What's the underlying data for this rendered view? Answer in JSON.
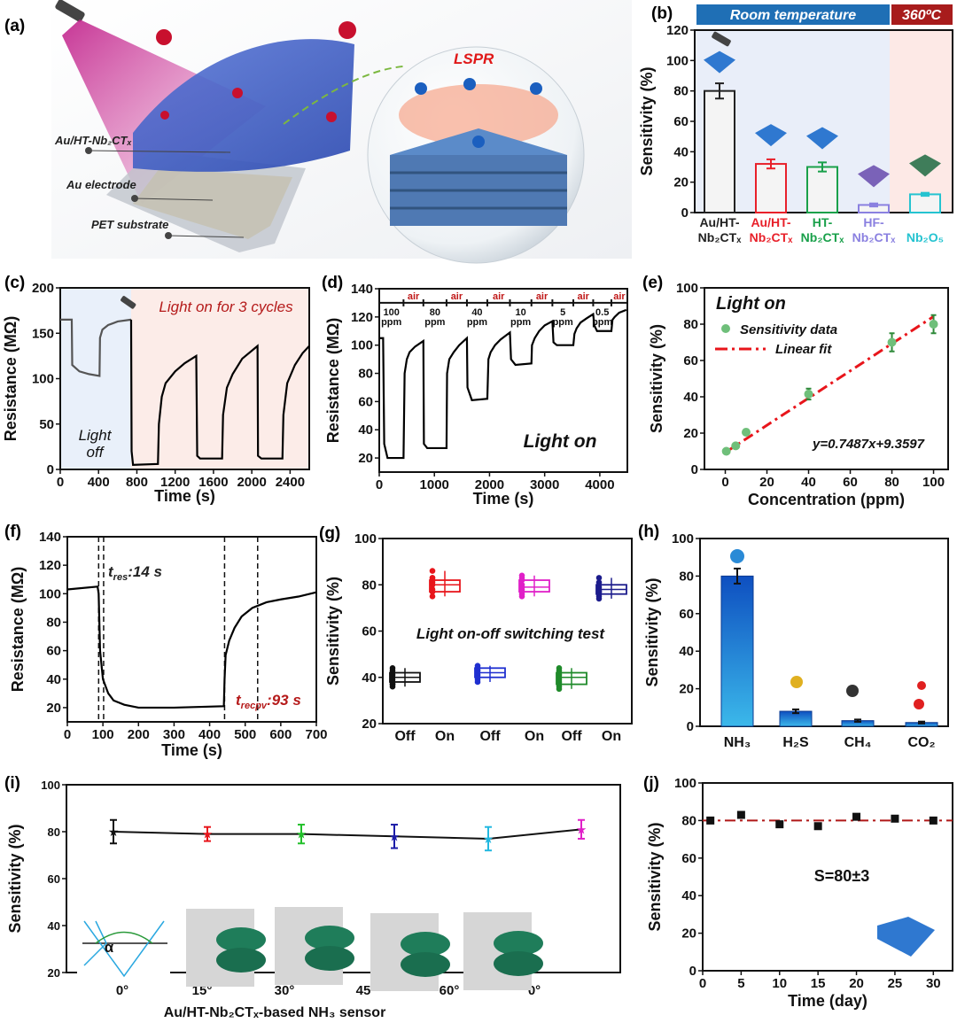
{
  "panel_letters": [
    "(a)",
    "(b)",
    "(c)",
    "(d)",
    "(e)",
    "(f)",
    "(g)",
    "(h)",
    "(i)",
    "(j)"
  ],
  "illustration": {
    "labels": [
      "Au/HT-Nb₂CTₓ",
      "Au electrode",
      "PET substrate"
    ],
    "lspr": "LSPR"
  },
  "chart_data": [
    {
      "panel": "b",
      "type": "bar",
      "ylabel": "Sensitivity (%)",
      "ylim": [
        0,
        120
      ],
      "yticks": [
        0,
        20,
        40,
        60,
        80,
        100,
        120
      ],
      "header": [
        "Room temperature",
        "360ºC"
      ],
      "header_colors": [
        "#1f6fb5",
        "#a81c1c"
      ],
      "categories": [
        "Au/HT-Nb₂CTₓ",
        "Au/HT-Nb₂CTₓ",
        "HT-Nb₂CTₓ",
        "HF-Nb₂CTₓ",
        "Nb₂O₅"
      ],
      "category_lines": [
        [
          "Au/HT-",
          "Nb₂CTₓ"
        ],
        [
          "Au/HT-",
          "Nb₂CTₓ"
        ],
        [
          "HT-",
          "Nb₂CTₓ"
        ],
        [
          "HF-",
          "Nb₂CTₓ"
        ],
        [
          "",
          "Nb₂O₅"
        ]
      ],
      "values": [
        80,
        32,
        30,
        5,
        12
      ],
      "errors": [
        5,
        3,
        3,
        1,
        1
      ],
      "colors": [
        "#222222",
        "#e8202a",
        "#19a04a",
        "#8a80e0",
        "#25c3d0"
      ]
    },
    {
      "panel": "c",
      "type": "line",
      "xlabel": "Time (s)",
      "ylabel": "Resistance (MΩ)",
      "xlim": [
        0,
        2600
      ],
      "ylim": [
        0,
        200
      ],
      "xticks": [
        0,
        400,
        800,
        1200,
        1600,
        2000,
        2400
      ],
      "yticks": [
        0,
        50,
        100,
        150,
        200
      ],
      "annotations": [
        "Light on for 3 cycles",
        "Light",
        "off"
      ],
      "regions": [
        {
          "from": 0,
          "to": 740,
          "color": "#e9f0fa"
        },
        {
          "from": 740,
          "to": 2600,
          "color": "#fcece8"
        }
      ],
      "series": [
        {
          "color": "#555555",
          "x": [
            0,
            120,
            125,
            200,
            300,
            410,
            415,
            440,
            500,
            600,
            740
          ],
          "y": [
            165,
            165,
            115,
            108,
            105,
            103,
            145,
            154,
            159,
            163,
            165
          ]
        },
        {
          "color": "#000000",
          "x": [
            740,
            745,
            760,
            1020,
            1030,
            1060,
            1100,
            1200,
            1300,
            1420,
            1430,
            1460,
            1690,
            1700,
            1740,
            1800,
            1900,
            2060,
            2065,
            2100,
            2320,
            2330,
            2370,
            2450,
            2530,
            2600
          ],
          "y": [
            165,
            20,
            5,
            6,
            50,
            80,
            95,
            108,
            117,
            125,
            15,
            12,
            12,
            60,
            90,
            105,
            122,
            136,
            15,
            12,
            12,
            60,
            95,
            115,
            128,
            136
          ]
        }
      ]
    },
    {
      "panel": "d",
      "type": "line",
      "xlabel": "Time (s)",
      "ylabel": "Resistance (MΩ)",
      "xlim": [
        0,
        4500
      ],
      "ylim": [
        10,
        140
      ],
      "xticks": [
        0,
        1000,
        2000,
        3000,
        4000
      ],
      "yticks": [
        20,
        40,
        60,
        80,
        100,
        120,
        140
      ],
      "air_label": "air",
      "air_count": 6,
      "concentration_labels": [
        "100",
        "80",
        "40",
        "10",
        "5",
        "0.5"
      ],
      "ppm_label": "ppm",
      "annotation": "Light on",
      "series": [
        {
          "color": "#000000",
          "x": [
            0,
            70,
            90,
            150,
            440,
            460,
            500,
            550,
            650,
            800,
            810,
            870,
            1220,
            1230,
            1270,
            1350,
            1450,
            1590,
            1600,
            1680,
            1960,
            1980,
            2020,
            2100,
            2200,
            2370,
            2390,
            2470,
            2760,
            2770,
            2820,
            2900,
            3000,
            3140,
            3160,
            3220,
            3520,
            3540,
            3580,
            3650,
            3760,
            3880,
            3900,
            3950,
            4210,
            4230,
            4270,
            4350,
            4480
          ],
          "y": [
            105,
            105,
            30,
            20,
            20,
            80,
            90,
            95,
            99,
            103,
            30,
            27,
            27,
            80,
            90,
            95,
            100,
            105,
            70,
            61,
            62,
            90,
            95,
            100,
            104,
            109,
            90,
            86,
            87,
            100,
            105,
            110,
            114,
            117,
            102,
            100,
            100,
            108,
            112,
            116,
            119,
            122,
            114,
            110,
            110,
            118,
            120,
            123,
            125
          ]
        }
      ]
    },
    {
      "panel": "e",
      "type": "scatter",
      "xlabel": "Concentration (ppm)",
      "ylabel": "Sensitivity (%)",
      "xlim": [
        -10,
        107
      ],
      "ylim": [
        0,
        100
      ],
      "xticks": [
        0,
        20,
        40,
        60,
        80,
        100
      ],
      "yticks": [
        0,
        20,
        40,
        60,
        80,
        100
      ],
      "title": "Light on",
      "legend": [
        "Sensitivity data",
        "Linear fit"
      ],
      "equation": "y=0.7487x+9.3597",
      "fit": {
        "slope": 0.7487,
        "intercept": 9.3597,
        "color": "#e8151b"
      },
      "point_color": "#6fbf7a",
      "x": [
        0.5,
        5,
        10,
        40,
        80,
        100
      ],
      "y": [
        10,
        13,
        20.5,
        41.5,
        70,
        80
      ],
      "errors": [
        1,
        1,
        1.5,
        3,
        5,
        5
      ]
    },
    {
      "panel": "f",
      "type": "line",
      "xlabel": "Time (s)",
      "ylabel": "Resistance (MΩ)",
      "xlim": [
        0,
        700
      ],
      "ylim": [
        10,
        140
      ],
      "xticks": [
        0,
        100,
        200,
        300,
        400,
        500,
        600,
        700
      ],
      "yticks": [
        20,
        40,
        60,
        80,
        100,
        120,
        140
      ],
      "markers": [
        88,
        102,
        442,
        535
      ],
      "t_res": {
        "t": "t",
        "sub": "res",
        "rest": ":14 s"
      },
      "t_rec": {
        "t": "t",
        "sub": "recpv",
        "rest": ":93 s"
      },
      "series": [
        {
          "color": "#000000",
          "x": [
            0,
            85,
            88,
            92,
            100,
            115,
            130,
            160,
            200,
            300,
            440,
            442,
            445,
            455,
            470,
            490,
            520,
            560,
            600,
            650,
            700
          ],
          "y": [
            103,
            105,
            100,
            60,
            40,
            30,
            25,
            22,
            20,
            20,
            21,
            40,
            57,
            67,
            76,
            84,
            90,
            94,
            96,
            98,
            101
          ]
        }
      ]
    },
    {
      "panel": "g",
      "type": "box",
      "ylabel": "Sensitivity (%)",
      "ylim": [
        20,
        100
      ],
      "yticks": [
        20,
        40,
        60,
        80,
        100
      ],
      "categories": [
        "Off",
        "On",
        "Off",
        "On",
        "Off",
        "On"
      ],
      "annotation": "Light on-off switching test",
      "colors": [
        "#111111",
        "#e8151b",
        "#1f2fd0",
        "#e020c8",
        "#1f8a2a",
        "#1c1c8c"
      ],
      "boxes": [
        {
          "q1": 38,
          "median": 40,
          "q3": 42,
          "min": 36,
          "max": 44,
          "points": [
            36,
            37,
            37,
            38,
            39,
            40,
            41,
            42,
            43,
            44
          ]
        },
        {
          "q1": 77,
          "median": 80,
          "q3": 82,
          "min": 75,
          "max": 86,
          "points": [
            75,
            77,
            77,
            78,
            80,
            81,
            82,
            83,
            83,
            86
          ]
        },
        {
          "q1": 40,
          "median": 42,
          "q3": 44,
          "min": 38,
          "max": 45,
          "points": [
            38,
            39,
            40,
            41,
            42,
            43,
            43,
            44,
            44,
            45
          ]
        },
        {
          "q1": 77,
          "median": 79,
          "q3": 82,
          "min": 75,
          "max": 84,
          "points": [
            75,
            76,
            77,
            78,
            79,
            79,
            80,
            82,
            83,
            84
          ]
        },
        {
          "q1": 37,
          "median": 40,
          "q3": 42,
          "min": 35,
          "max": 44,
          "points": [
            35,
            36,
            37,
            38,
            39,
            40,
            41,
            42,
            43,
            44
          ]
        },
        {
          "q1": 76,
          "median": 78,
          "q3": 80,
          "min": 74,
          "max": 83,
          "points": [
            74,
            75,
            76,
            77,
            77,
            78,
            78,
            79,
            81,
            83
          ]
        }
      ]
    },
    {
      "panel": "h",
      "type": "bar",
      "ylabel": "Sensitivity (%)",
      "ylim": [
        0,
        100
      ],
      "yticks": [
        0,
        20,
        40,
        60,
        80,
        100
      ],
      "categories": [
        "NH₃",
        "H₂S",
        "CH₄",
        "CO₂"
      ],
      "values": [
        80,
        8,
        3,
        2
      ],
      "errors": [
        4,
        1,
        0.6,
        0.5
      ],
      "bar_color": "#1565c8"
    },
    {
      "panel": "i",
      "type": "line",
      "xlabel": "Au/HT-Nb₂CTₓ-based NH₃ sensor",
      "ylabel": "Sensitivity (%)",
      "ylim": [
        20,
        100
      ],
      "yticks": [
        20,
        40,
        60,
        80,
        100
      ],
      "categories": [
        "0°",
        "15°",
        "30°",
        "45°",
        "60°",
        "0°"
      ],
      "values": [
        80,
        79,
        79,
        78,
        77,
        81
      ],
      "errors": [
        5,
        3,
        4,
        5,
        5,
        4
      ],
      "colors": [
        "#111111",
        "#e8151b",
        "#22c02a",
        "#1c1ca8",
        "#22b8e0",
        "#e020c8"
      ],
      "inset_label": "α"
    },
    {
      "panel": "j",
      "type": "scatter",
      "xlabel": "Time (day)",
      "ylabel": "Sensitivity (%)",
      "xlim": [
        0,
        32.5
      ],
      "ylim": [
        0,
        100
      ],
      "xticks": [
        0,
        5,
        10,
        15,
        20,
        25,
        30
      ],
      "yticks": [
        0,
        20,
        40,
        60,
        80,
        100
      ],
      "x": [
        1,
        5,
        10,
        15,
        20,
        25,
        30
      ],
      "y": [
        80,
        83,
        78,
        77,
        82,
        81,
        80
      ],
      "reference": 80,
      "reference_color": "#b01818",
      "annotation": "S=80±3"
    }
  ]
}
